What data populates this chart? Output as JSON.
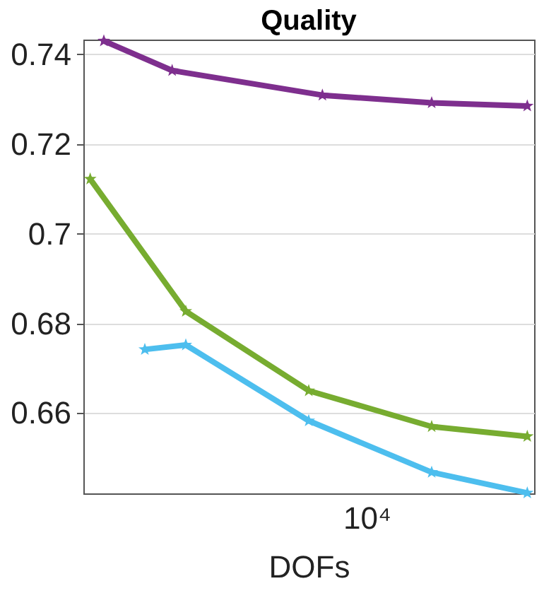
{
  "chart_data": {
    "type": "line",
    "title": "Quality",
    "xlabel": "DOFs",
    "grid": "y",
    "marker": "star",
    "line_style": "solid",
    "annotations": [
      "10⁴"
    ],
    "categories": [
      null,
      null,
      null,
      null,
      null,
      null,
      null,
      null,
      null,
      null,
      null,
      null,
      null,
      null,
      null,
      null,
      null,
      null,
      null,
      null,
      null,
      null,
      null,
      null,
      null,
      null,
      null,
      null,
      null,
      null,
      null,
      null,
      null
    ],
    "ylim": [
      0.6421,
      0.7433
    ],
    "yticks": [
      0.66,
      0.68,
      0.7,
      0.72,
      0.74
    ],
    "series": [
      {
        "color": "#7e2f8e",
        "values": [
          null,
          0.743,
          null,
          null,
          null,
          null,
          0.7364,
          null,
          null,
          null,
          null,
          null,
          null,
          null,
          null,
          null,
          null,
          0.7309,
          null,
          null,
          null,
          null,
          null,
          null,
          null,
          0.7292,
          null,
          null,
          null,
          null,
          null,
          null,
          0.7285
        ]
      },
      {
        "color": "#77ac30",
        "values": [
          0.7122,
          null,
          null,
          null,
          null,
          null,
          null,
          0.6827,
          null,
          null,
          null,
          null,
          null,
          null,
          null,
          null,
          0.665,
          null,
          null,
          null,
          null,
          null,
          null,
          null,
          null,
          0.657,
          null,
          null,
          null,
          null,
          null,
          null,
          0.6548
        ]
      },
      {
        "color": "#4dbeee",
        "values": [
          null,
          null,
          null,
          null,
          0.6742,
          null,
          null,
          0.6752,
          null,
          null,
          null,
          null,
          null,
          null,
          null,
          null,
          0.6583,
          null,
          null,
          null,
          null,
          null,
          null,
          null,
          null,
          0.6468,
          null,
          null,
          null,
          null,
          null,
          null,
          0.6422
        ]
      }
    ]
  }
}
